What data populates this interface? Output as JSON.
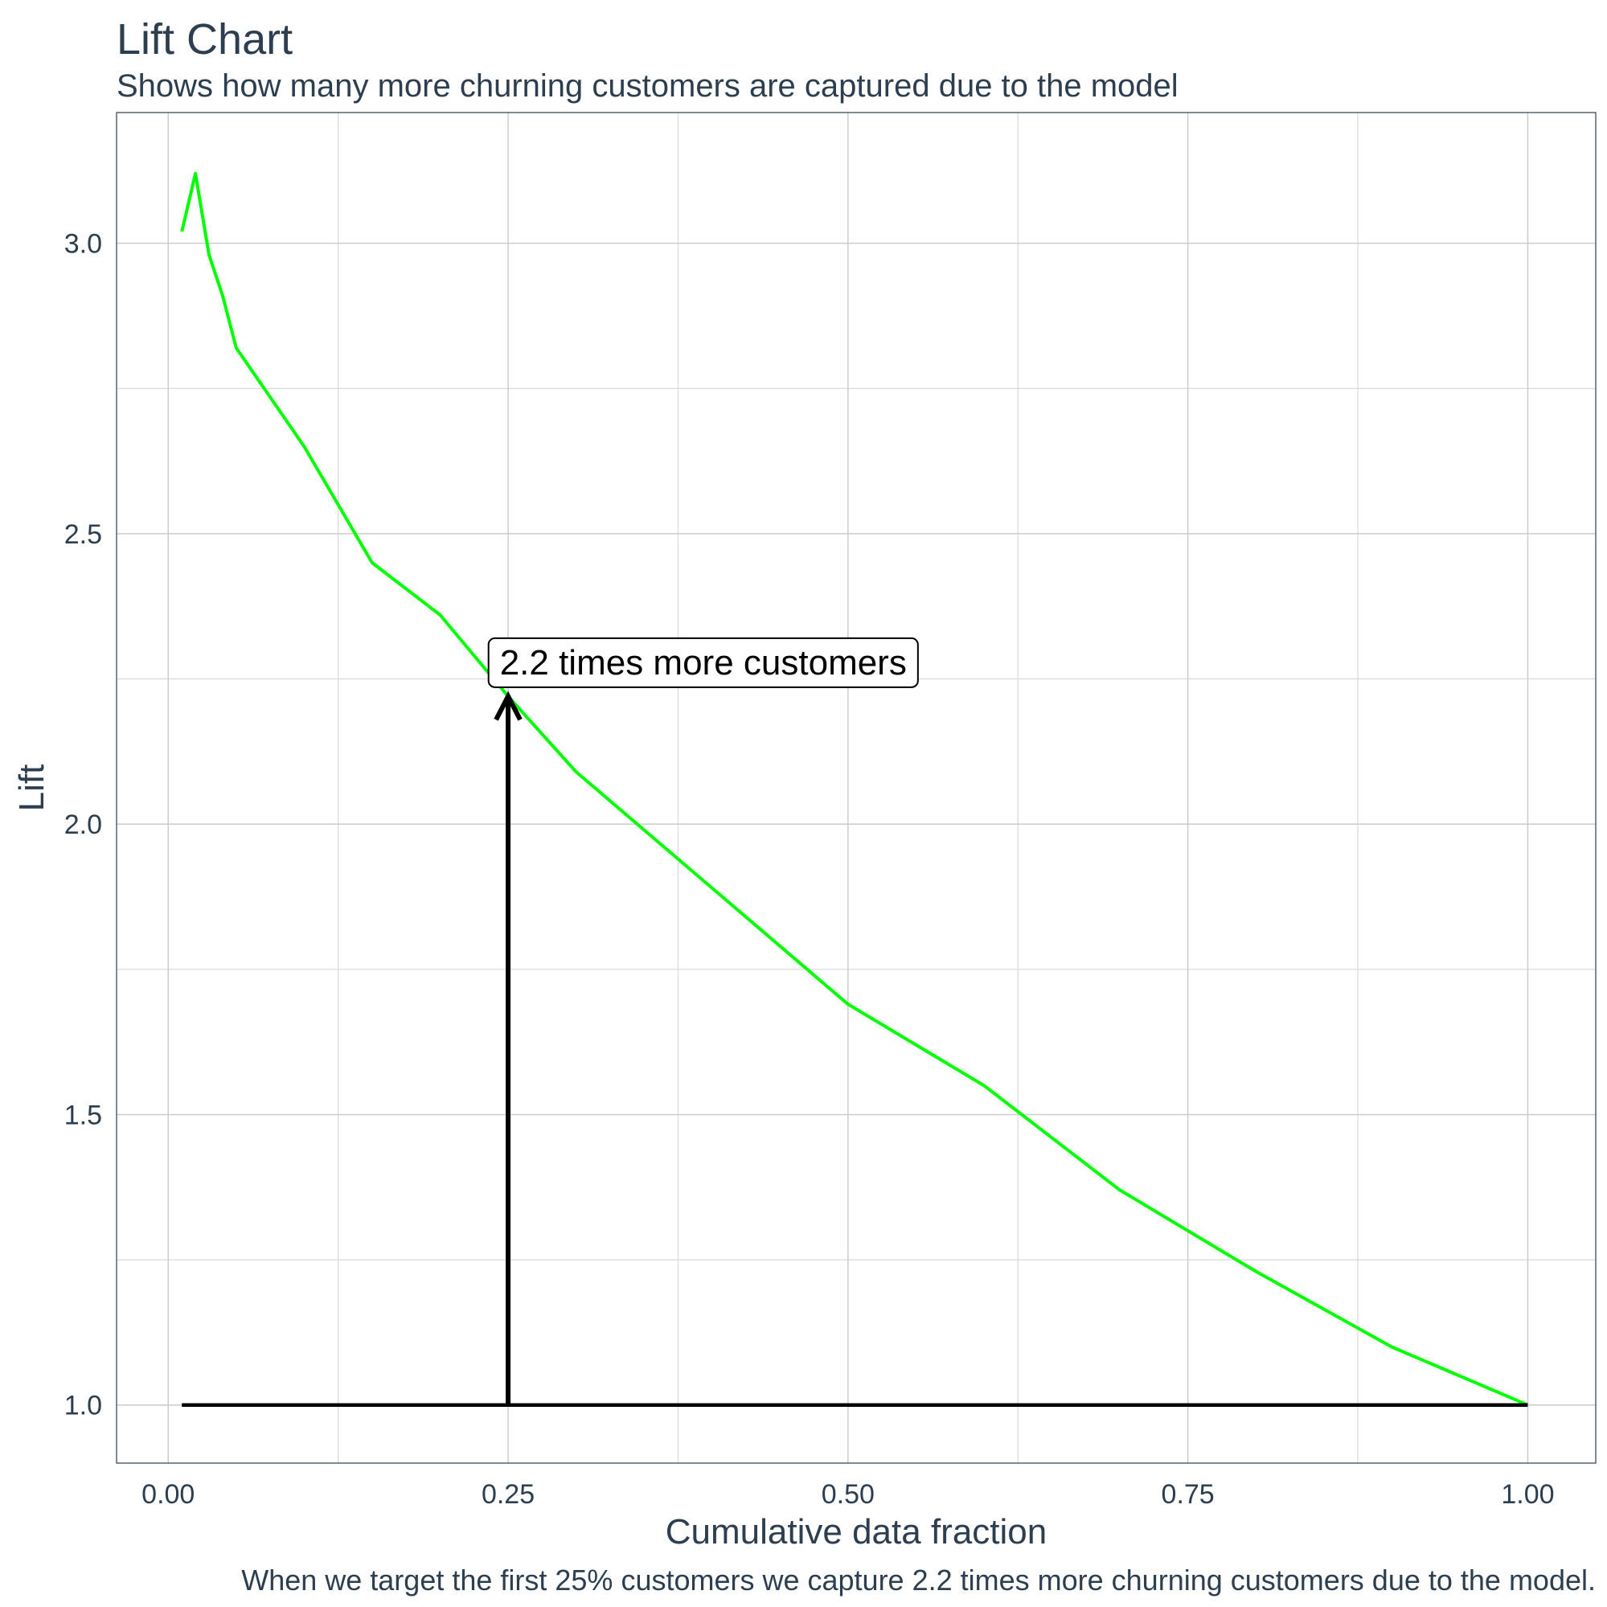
{
  "chart_data": {
    "type": "line",
    "title": "Lift Chart",
    "subtitle": "Shows how many more churning customers are captured due to the model",
    "caption": "When we target the first 25% customers we capture 2.2 times more churning customers due to the model.",
    "xlabel": "Cumulative data fraction",
    "ylabel": "Lift",
    "xlim": [
      -0.038,
      1.05
    ],
    "ylim": [
      0.9,
      3.225
    ],
    "x_ticks": [
      0.0,
      0.25,
      0.5,
      0.75,
      1.0
    ],
    "x_tick_labels": [
      "0.00",
      "0.25",
      "0.50",
      "0.75",
      "1.00"
    ],
    "y_ticks": [
      1.0,
      1.5,
      2.0,
      2.5,
      3.0
    ],
    "y_tick_labels": [
      "1.0",
      "1.5",
      "2.0",
      "2.5",
      "3.0"
    ],
    "grid": true,
    "series": [
      {
        "color": "#00ff00",
        "x": [
          0.01,
          0.02,
          0.03,
          0.04,
          0.05,
          0.1,
          0.15,
          0.2,
          0.25,
          0.3,
          0.4,
          0.5,
          0.6,
          0.7,
          0.8,
          0.9,
          1.0
        ],
        "y": [
          3.02,
          3.12,
          2.98,
          2.91,
          2.82,
          2.65,
          2.45,
          2.36,
          2.22,
          2.09,
          1.89,
          1.69,
          1.55,
          1.37,
          1.23,
          1.1,
          1.0
        ]
      },
      {
        "color": "#000000",
        "x": [
          0.01,
          1.0
        ],
        "y": [
          1.0,
          1.0
        ]
      }
    ],
    "annotations": [
      {
        "type": "arrow",
        "x": 0.25,
        "y_from": 1.0,
        "y_to": 2.22,
        "color": "#000000"
      },
      {
        "type": "label",
        "text": "2.2 times more customers",
        "x": 0.235,
        "y": 2.28
      }
    ]
  }
}
